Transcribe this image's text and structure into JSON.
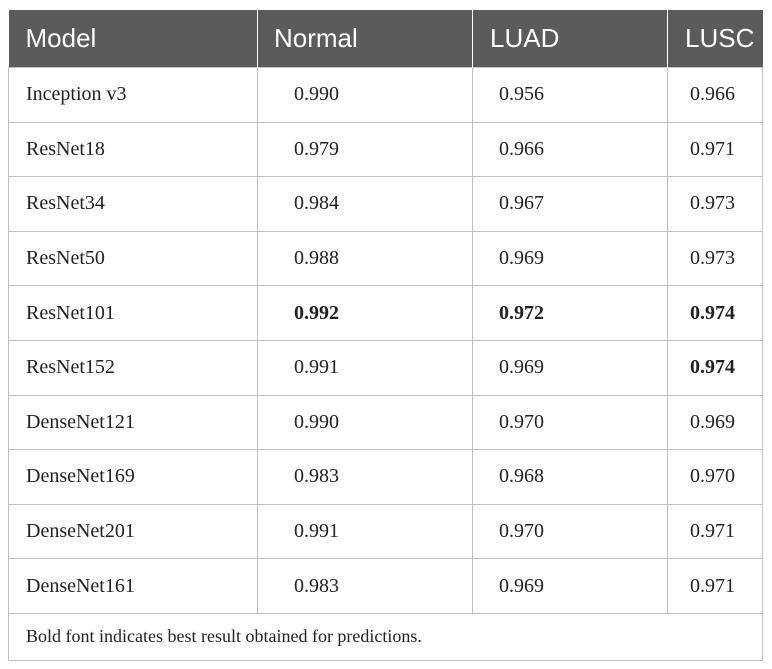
{
  "table": {
    "header": [
      "Model",
      "Normal",
      "LUAD",
      "LUSC"
    ],
    "rows": [
      [
        "Inception v3",
        "0.990",
        "0.956",
        "0.966"
      ],
      [
        "ResNet18",
        "0.979",
        "0.966",
        "0.971"
      ],
      [
        "ResNet34",
        "0.984",
        "0.967",
        "0.973"
      ],
      [
        "ResNet50",
        "0.988",
        "0.969",
        "0.973"
      ],
      [
        "ResNet101",
        "0.992",
        "0.972",
        "0.974"
      ],
      [
        "ResNet152",
        "0.991",
        "0.969",
        "0.974"
      ],
      [
        "DenseNet121",
        "0.990",
        "0.970",
        "0.969"
      ],
      [
        "DenseNet169",
        "0.983",
        "0.968",
        "0.970"
      ],
      [
        "DenseNet201",
        "0.991",
        "0.970",
        "0.971"
      ],
      [
        "DenseNet161",
        "0.983",
        "0.969",
        "0.971"
      ]
    ],
    "bold_cells": [
      [
        4,
        1
      ],
      [
        4,
        2
      ],
      [
        4,
        3
      ],
      [
        5,
        3
      ]
    ],
    "footnote": "Bold font indicates best result obtained for predictions."
  }
}
